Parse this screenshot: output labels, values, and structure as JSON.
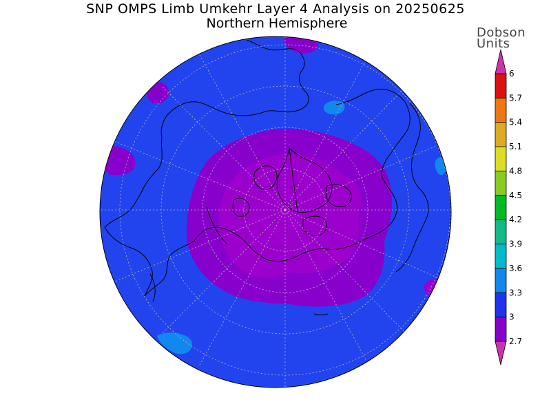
{
  "title": "SNP OMPS Limb Umkehr Layer 4 Analysis on 20250625",
  "subtitle": "Northern Hemisphere",
  "units": [
    "Dobson",
    "Units"
  ],
  "legend": {
    "tick_labels": [
      "2.7",
      "3",
      "3.3",
      "3.6",
      "3.9",
      "4.2",
      "4.5",
      "4.8",
      "5.1",
      "5.4",
      "5.7",
      "6"
    ],
    "colors": [
      "#8800cc",
      "#2233ee",
      "#1188ee",
      "#00bbcc",
      "#11bb88",
      "#00bb22",
      "#88cc22",
      "#dddd22",
      "#ddaa22",
      "#ee7711",
      "#dd1111"
    ],
    "arrow_low_color": "#cc33aa",
    "arrow_high_color": "#cc33aa"
  },
  "map": {
    "projection": "north-polar-stereographic",
    "hemisphere": "Northern Hemisphere",
    "background_color": "#2244ee",
    "regions": [
      {
        "level": "2.7–3",
        "color": "#8800cc"
      },
      {
        "level": "<2.7",
        "color": "#9900cc"
      },
      {
        "level": "3.3–3.6",
        "color": "#1188ee"
      }
    ]
  }
}
